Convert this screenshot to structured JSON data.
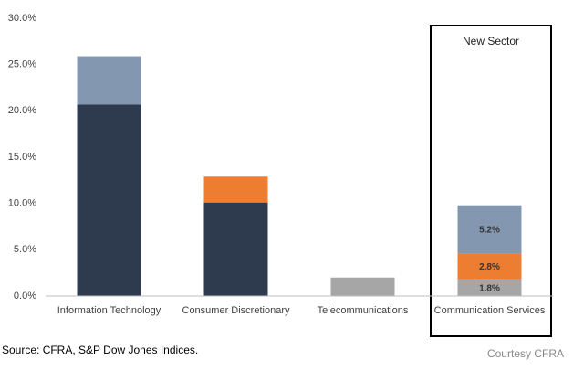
{
  "chart_data": {
    "type": "bar",
    "stacked": true,
    "categories": [
      "Information Technology",
      "Consumer Discretionary",
      "Telecommunications",
      "Communication Services"
    ],
    "series": [
      {
        "color": "#2e3a4e",
        "values": [
          20.7,
          10.1,
          null,
          null
        ]
      },
      {
        "color": "#a6a6a6",
        "values": [
          null,
          null,
          2.0,
          1.8
        ],
        "value_labels": [
          null,
          null,
          null,
          "1.8%"
        ]
      },
      {
        "color": "#ed7d31",
        "values": [
          null,
          2.8,
          null,
          2.8
        ],
        "value_labels": [
          null,
          null,
          null,
          "2.8%"
        ]
      },
      {
        "color": "#8497b0",
        "values": [
          5.2,
          null,
          null,
          5.2
        ],
        "value_labels": [
          null,
          null,
          null,
          "5.2%"
        ]
      }
    ],
    "ylim": [
      0,
      30
    ],
    "yticks": [
      {
        "value": 0,
        "label": "0.0%"
      },
      {
        "value": 5,
        "label": "5.0%"
      },
      {
        "value": 10,
        "label": "10.0%"
      },
      {
        "value": 15,
        "label": "15.0%"
      },
      {
        "value": 20,
        "label": "20.0%"
      },
      {
        "value": 25,
        "label": "25.0%"
      },
      {
        "value": 30,
        "label": "30.0%"
      }
    ],
    "grid": false,
    "annotations": [
      "New Sector"
    ],
    "source": "Source: CFRA, S&P Dow Jones Indices.",
    "credit": "Courtesy CFRA"
  }
}
